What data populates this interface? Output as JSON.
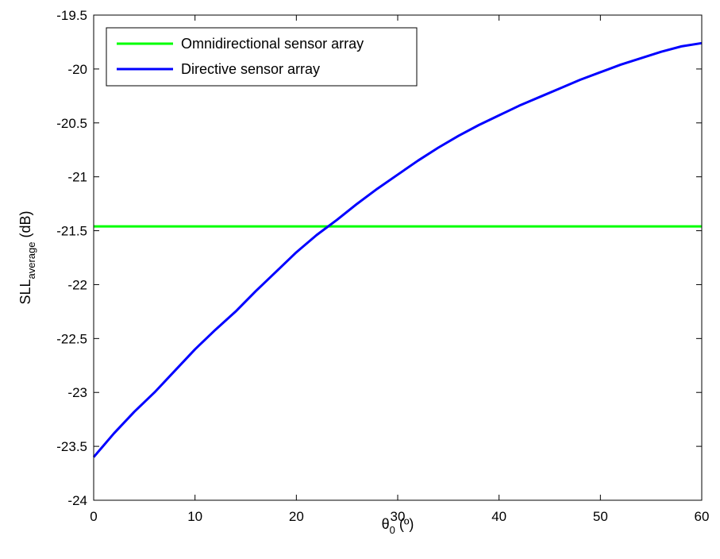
{
  "chart_data": {
    "type": "line",
    "xlabel": {
      "base": "θ",
      "sub": "0",
      "suffix": " (º)"
    },
    "ylabel": {
      "base": "SLL",
      "sub": "average",
      "suffix": " (dB)"
    },
    "xlim": [
      0,
      60
    ],
    "ylim": [
      -24,
      -19.5
    ],
    "x_ticks": [
      0,
      10,
      20,
      30,
      40,
      50,
      60
    ],
    "x_tick_labels": [
      "0",
      "10",
      "20",
      "30",
      "40",
      "50",
      "60"
    ],
    "y_ticks": [
      -24,
      -23.5,
      -23,
      -22.5,
      -22,
      -21.5,
      -21,
      -20.5,
      -20,
      -19.5
    ],
    "y_tick_labels": [
      "-24",
      "-23.5",
      "-23",
      "-22.5",
      "-22",
      "-21.5",
      "-21",
      "-20.5",
      "-20",
      "-19.5"
    ],
    "grid": false,
    "legend_position": "top-left",
    "series": [
      {
        "name": "Omnidirectional sensor array",
        "color": "#00ff00",
        "x": [
          0,
          60
        ],
        "y": [
          -21.46,
          -21.46
        ]
      },
      {
        "name": "Directive sensor array",
        "color": "#0000ff",
        "x": [
          0,
          2,
          4,
          6,
          8,
          10,
          12,
          14,
          16,
          18,
          20,
          22,
          24,
          26,
          28,
          30,
          32,
          34,
          36,
          38,
          40,
          42,
          44,
          46,
          48,
          50,
          52,
          54,
          56,
          58,
          60
        ],
        "y": [
          -23.6,
          -23.38,
          -23.18,
          -23.0,
          -22.8,
          -22.6,
          -22.42,
          -22.25,
          -22.06,
          -21.88,
          -21.7,
          -21.54,
          -21.4,
          -21.25,
          -21.11,
          -20.98,
          -20.85,
          -20.73,
          -20.62,
          -20.52,
          -20.43,
          -20.34,
          -20.26,
          -20.18,
          -20.1,
          -20.03,
          -19.96,
          -19.9,
          -19.84,
          -19.79,
          -19.76
        ]
      }
    ]
  }
}
